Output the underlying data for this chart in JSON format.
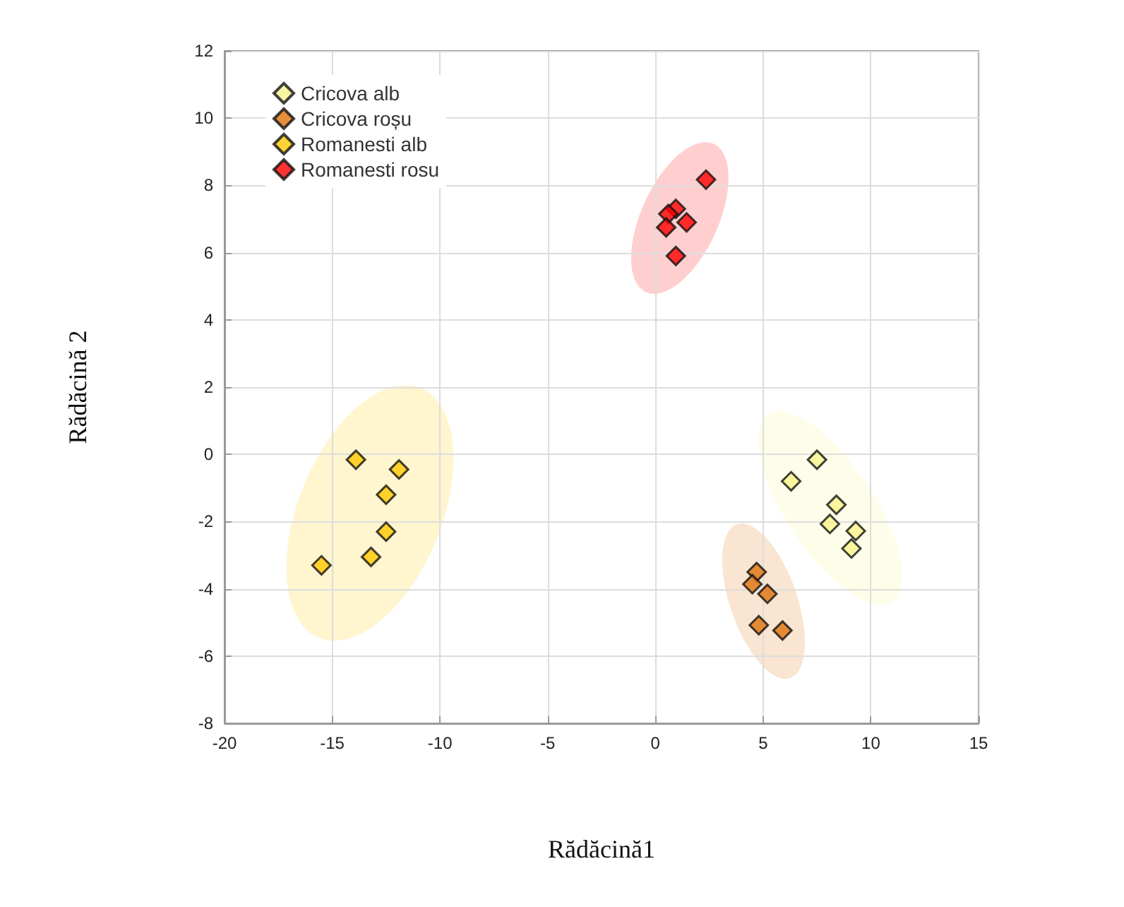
{
  "chart_data": {
    "type": "scatter",
    "xlabel": "Rădăcină1",
    "ylabel": "Rădăcină 2",
    "xlim": [
      -20,
      15
    ],
    "xticks": [
      -20,
      -15,
      -10,
      -5,
      0,
      5,
      10,
      15
    ],
    "ylim": [
      -8,
      12
    ],
    "yticks": [
      -8,
      -6,
      -4,
      -2,
      0,
      2,
      4,
      6,
      8,
      10,
      12
    ],
    "grid": true,
    "legend": "top left",
    "marker": "diamond",
    "series": [
      {
        "name": "Cricova alb",
        "color": "#f8f48c",
        "x": [
          7.5,
          6.3,
          8.4,
          8.1,
          9.3,
          9.1
        ],
        "values": [
          -0.16,
          -0.8,
          -1.5,
          -2.07,
          -2.28,
          -2.8
        ]
      },
      {
        "name": "Cricova roșu",
        "color": "#e0730c",
        "x": [
          4.7,
          4.5,
          5.2,
          4.8,
          5.9
        ],
        "values": [
          -3.5,
          -3.86,
          -4.15,
          -5.08,
          -5.24
        ]
      },
      {
        "name": "Romanesti alb",
        "color": "#ffc800",
        "x": [
          -13.9,
          -11.9,
          -12.5,
          -12.5,
          -15.5,
          -13.2
        ],
        "values": [
          -0.16,
          -0.45,
          -1.2,
          -2.3,
          -3.3,
          -3.05
        ]
      },
      {
        "name": "Romanesti rosu",
        "color": "#ff0000",
        "x": [
          2.35,
          0.95,
          0.6,
          1.45,
          0.5,
          0.95
        ],
        "values": [
          8.17,
          7.3,
          7.15,
          6.9,
          6.75,
          5.9
        ]
      }
    ]
  }
}
